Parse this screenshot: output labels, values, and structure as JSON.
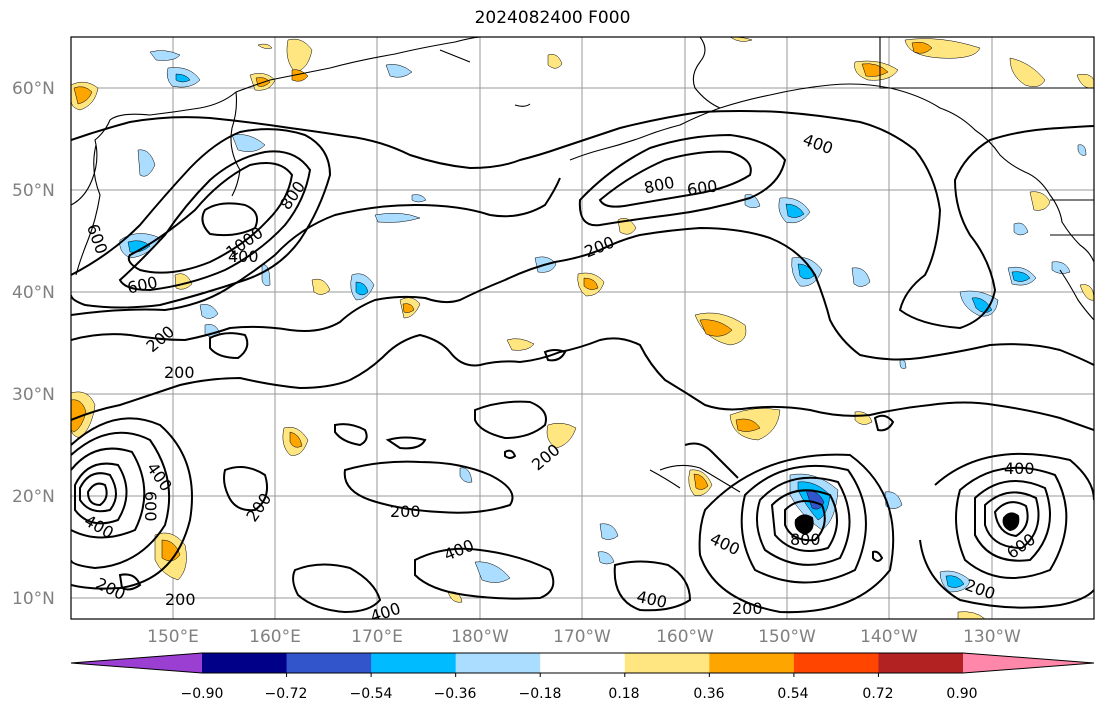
{
  "title": "2024082400 F000",
  "lat_labels": [
    "60°N",
    "50°N",
    "40°N",
    "30°N",
    "20°N",
    "10°N"
  ],
  "lon_labels": [
    "150°E",
    "160°E",
    "170°E",
    "180°W",
    "170°W",
    "160°W",
    "150°W",
    "140°W",
    "130°W"
  ],
  "contour_labels": [
    "800",
    "600",
    "1000",
    "400",
    "400",
    "200",
    "600",
    "200",
    "200",
    "800",
    "600",
    "200",
    "400",
    "400",
    "600",
    "200",
    "200",
    "200",
    "200",
    "400",
    "400",
    "400",
    "200",
    "400",
    "800",
    "200",
    "400",
    "600"
  ],
  "colorbar": {
    "colors": [
      "#9a3fd1",
      "#000088",
      "#3355cc",
      "#00bbff",
      "#aaddff",
      "#ffffff",
      "#ffe680",
      "#ffa500",
      "#ff4500",
      "#b22222",
      "#ff88aa"
    ],
    "tick_labels": [
      "−0.90",
      "−0.72",
      "−0.54",
      "−0.36",
      "−0.18",
      "0.18",
      "0.36",
      "0.54",
      "0.72",
      "0.90"
    ]
  },
  "colors": {
    "land_outline": "#000000",
    "gridline": "#999999",
    "contour": "#000000"
  }
}
